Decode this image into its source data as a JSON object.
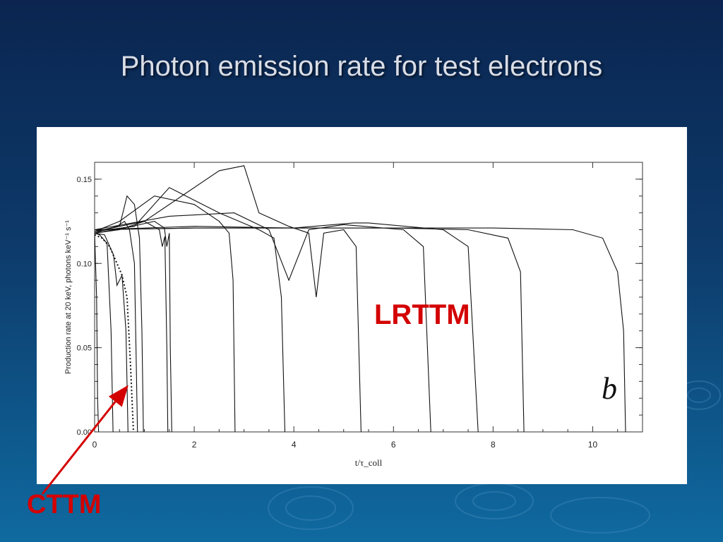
{
  "slide": {
    "title": "Photon emission rate for test electrons"
  },
  "annotations": {
    "lrttm": "LRTTM",
    "cttm": "CTTM",
    "panel_mark": "b"
  },
  "colors": {
    "background_top": "#0b2550",
    "background_bottom": "#0f6aa0",
    "callout_red": "#d40000",
    "curve": "#111111"
  },
  "chart_data": {
    "type": "line",
    "title": "",
    "xlabel": "t/τ_coll",
    "ylabel": "Production rate at 20 keV, photons keV⁻¹ s⁻¹",
    "xlim": [
      0,
      11
    ],
    "ylim": [
      0,
      0.16
    ],
    "x_ticks": [
      0,
      2,
      4,
      6,
      8,
      10
    ],
    "x_tick_labels": [
      "0",
      "2",
      "4",
      "6",
      "8",
      "10"
    ],
    "y_ticks": [
      0.0,
      0.05,
      0.1,
      0.15
    ],
    "y_tick_labels": [
      "0.00",
      "0.05",
      "0.10",
      "0.15"
    ],
    "grid": false,
    "series": [
      {
        "style": "solid",
        "x": [
          0,
          0.04,
          0.06,
          0.08
        ],
        "y": [
          0.118,
          0.08,
          0.02,
          0
        ]
      },
      {
        "style": "solid",
        "x": [
          0,
          0.1,
          0.25,
          0.33,
          0.37
        ],
        "y": [
          0.118,
          0.117,
          0.112,
          0.06,
          0
        ]
      },
      {
        "style": "solid",
        "x": [
          0,
          0.2,
          0.38,
          0.45,
          0.55,
          0.63,
          0.67
        ],
        "y": [
          0.118,
          0.117,
          0.105,
          0.087,
          0.093,
          0.06,
          0
        ]
      },
      {
        "style": "dotted",
        "x": [
          0,
          0.15,
          0.3,
          0.45,
          0.55,
          0.65,
          0.72,
          0.78
        ],
        "y": [
          0.117,
          0.115,
          0.11,
          0.1,
          0.093,
          0.08,
          0.04,
          0
        ]
      },
      {
        "style": "solid",
        "x": [
          0,
          0.2,
          0.45,
          0.6,
          0.7,
          0.8,
          0.83,
          0.86
        ],
        "y": [
          0.118,
          0.12,
          0.122,
          0.125,
          0.12,
          0.1,
          0.05,
          0
        ]
      },
      {
        "style": "solid",
        "x": [
          0,
          0.2,
          0.5,
          0.65,
          0.8,
          0.9,
          0.95,
          0.98
        ],
        "y": [
          0.118,
          0.12,
          0.122,
          0.14,
          0.135,
          0.115,
          0.06,
          0
        ]
      },
      {
        "style": "solid",
        "x": [
          0,
          0.5,
          1.0,
          1.3,
          1.36,
          1.41,
          1.45,
          1.47
        ],
        "y": [
          0.118,
          0.12,
          0.125,
          0.12,
          0.11,
          0.116,
          0.05,
          0
        ]
      },
      {
        "style": "solid",
        "x": [
          0,
          0.6,
          1.2,
          1.4,
          1.45,
          1.5,
          1.52,
          1.55
        ],
        "y": [
          0.118,
          0.121,
          0.125,
          0.121,
          0.11,
          0.118,
          0.05,
          0
        ]
      },
      {
        "style": "solid",
        "x": [
          0,
          0.5,
          1.2,
          2.0,
          2.5,
          2.7,
          2.78,
          2.82
        ],
        "y": [
          0.119,
          0.125,
          0.14,
          0.135,
          0.125,
          0.118,
          0.09,
          0
        ]
      },
      {
        "style": "solid",
        "x": [
          0,
          0.8,
          1.5,
          2.5,
          3.3,
          3.6,
          3.75,
          3.82
        ],
        "y": [
          0.119,
          0.122,
          0.145,
          0.13,
          0.12,
          0.115,
          0.08,
          0
        ]
      },
      {
        "style": "solid",
        "x": [
          0,
          1.0,
          2.5,
          3.0,
          3.3,
          3.9,
          4.3,
          4.45,
          4.6,
          5.0,
          5.25,
          5.35
        ],
        "y": [
          0.119,
          0.125,
          0.155,
          0.158,
          0.13,
          0.122,
          0.118,
          0.08,
          0.118,
          0.12,
          0.11,
          0
        ]
      },
      {
        "style": "solid",
        "x": [
          0,
          1.5,
          2.8,
          3.5,
          3.9,
          4.3,
          5.0,
          6.2,
          6.6,
          6.75
        ],
        "y": [
          0.12,
          0.128,
          0.13,
          0.12,
          0.09,
          0.12,
          0.123,
          0.12,
          0.11,
          0
        ]
      },
      {
        "style": "solid",
        "x": [
          0,
          2,
          4,
          5.2,
          5.5,
          7.0,
          7.5,
          7.7
        ],
        "y": [
          0.12,
          0.122,
          0.121,
          0.124,
          0.124,
          0.12,
          0.11,
          0
        ]
      },
      {
        "style": "solid",
        "x": [
          0,
          2,
          4,
          6,
          7.5,
          8.3,
          8.55,
          8.62
        ],
        "y": [
          0.12,
          0.121,
          0.121,
          0.121,
          0.12,
          0.115,
          0.095,
          0
        ]
      },
      {
        "style": "solid",
        "x": [
          0,
          2,
          4,
          6,
          8,
          9.6,
          10.2,
          10.5,
          10.62,
          10.66
        ],
        "y": [
          0.12,
          0.121,
          0.121,
          0.121,
          0.121,
          0.12,
          0.115,
          0.095,
          0.06,
          0
        ]
      }
    ]
  }
}
